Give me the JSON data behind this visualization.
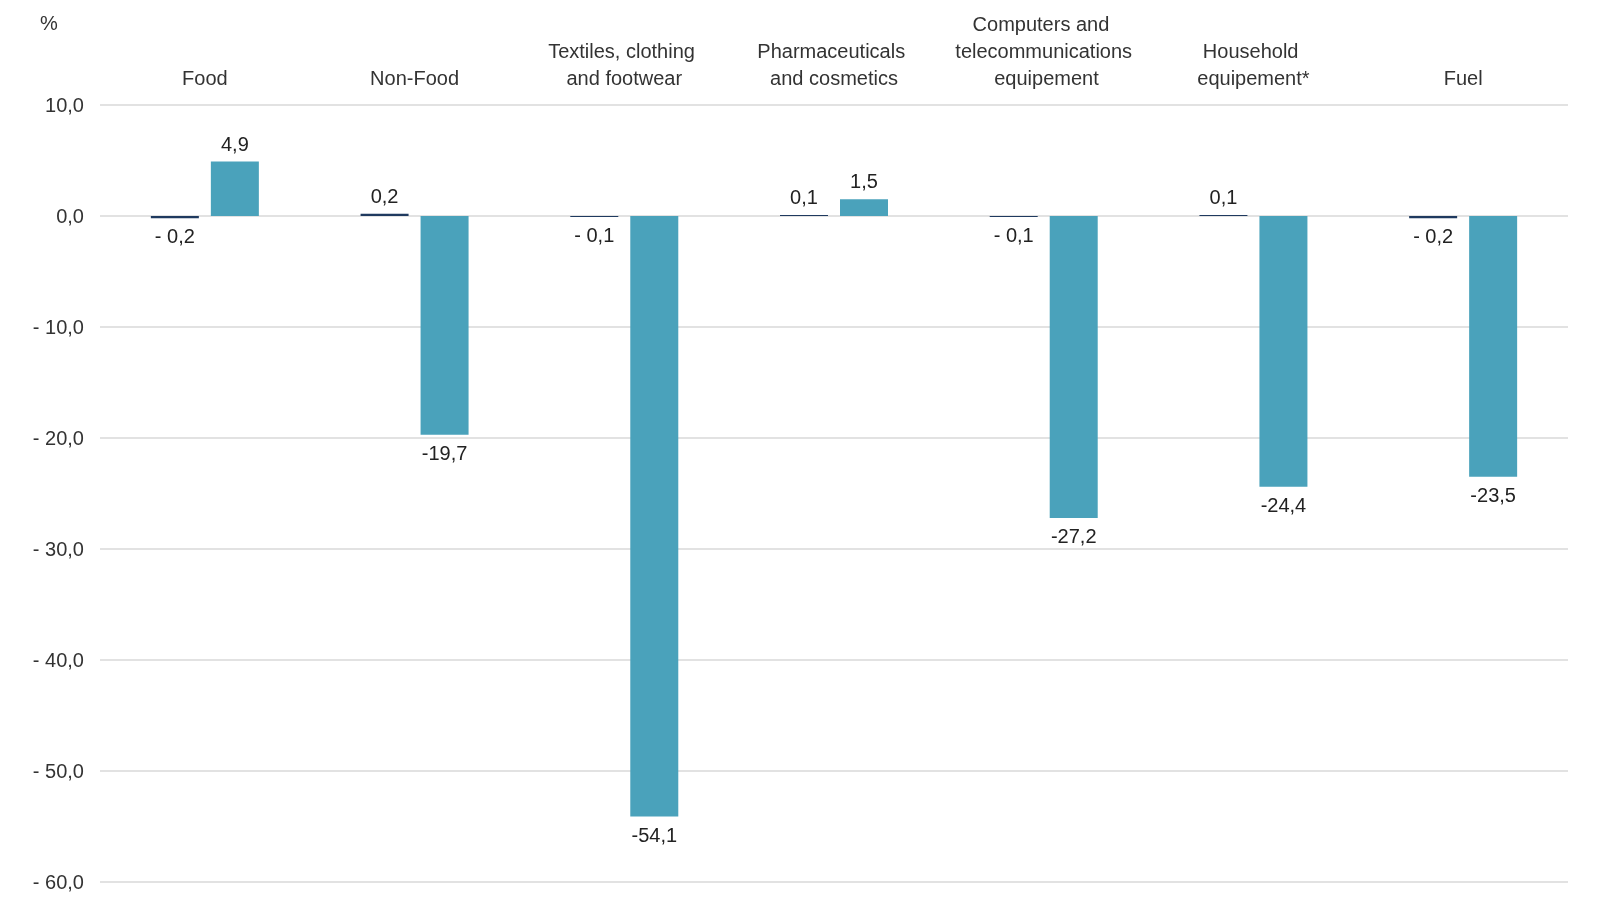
{
  "chart_data": {
    "type": "bar",
    "ylabel": "%",
    "categories": [
      "Food",
      "Non-Food",
      "Textiles, clothing and footwear",
      "Pharmaceuticals and cosmetics",
      "Computers and telecommunications equipement",
      "Household equipement*",
      "Fuel"
    ],
    "series": [
      {
        "color": "#1f3a5f",
        "values": [
          -0.2,
          0.2,
          -0.1,
          0.1,
          -0.1,
          0.1,
          -0.2
        ],
        "value_labels": [
          "- 0,2",
          "0,2",
          "- 0,1",
          "0,1",
          "- 0,1",
          "0,1",
          "- 0,2"
        ]
      },
      {
        "color": "#4aa2bb",
        "values": [
          4.9,
          -19.7,
          -54.1,
          1.5,
          -27.2,
          -24.4,
          -23.5
        ],
        "value_labels": [
          "4,9",
          "-19,7",
          "-54,1",
          "1,5",
          "-27,2",
          "-24,4",
          "-23,5"
        ]
      }
    ],
    "ylim": [
      -60,
      10
    ],
    "yticks": [
      {
        "value": 10,
        "label": "10,0"
      },
      {
        "value": 0,
        "label": "0,0"
      },
      {
        "value": -10,
        "label": "- 10,0"
      },
      {
        "value": -20,
        "label": "- 20,0"
      },
      {
        "value": -30,
        "label": "- 30,0"
      },
      {
        "value": -40,
        "label": "- 40,0"
      },
      {
        "value": -50,
        "label": "- 50,0"
      },
      {
        "value": -60,
        "label": "- 60,0"
      }
    ],
    "grid": "y"
  }
}
